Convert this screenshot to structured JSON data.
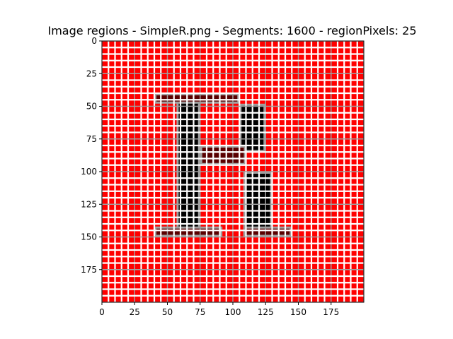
{
  "chart_data": {
    "type": "heatmap",
    "title": "Image regions - SimpleR.png - Segments: 1600 - regionPixels: 25",
    "xlabel": "",
    "ylabel": "",
    "image_size": [
      200,
      200
    ],
    "xlim": [
      0,
      200
    ],
    "ylim": [
      200,
      0
    ],
    "grid_step": 5,
    "x_ticks": [
      0,
      25,
      50,
      75,
      100,
      125,
      150,
      175
    ],
    "y_ticks": [
      0,
      25,
      50,
      75,
      100,
      125,
      150,
      175
    ],
    "letter": "R",
    "colors": {
      "background": "#ff0000",
      "grid_lines": "#ffffff",
      "region_border": "#a0a0a0",
      "letter_dark": "#5a0000",
      "letter_core": "#000000"
    },
    "letter_strokes": [
      {
        "name": "stem",
        "x": [
          57,
          75
        ],
        "y": [
          40,
          150
        ]
      },
      {
        "name": "top-bar",
        "x": [
          40,
          105
        ],
        "y": [
          40,
          48
        ]
      },
      {
        "name": "bowl-right",
        "x": [
          105,
          125
        ],
        "y": [
          48,
          85
        ]
      },
      {
        "name": "middle-bar",
        "x": [
          75,
          110
        ],
        "y": [
          80,
          95
        ]
      },
      {
        "name": "leg",
        "x": [
          108,
          130
        ],
        "y": [
          100,
          150
        ]
      },
      {
        "name": "base-left",
        "x": [
          40,
          92
        ],
        "y": [
          142,
          150
        ]
      },
      {
        "name": "base-right",
        "x": [
          108,
          145
        ],
        "y": [
          142,
          150
        ]
      }
    ]
  }
}
